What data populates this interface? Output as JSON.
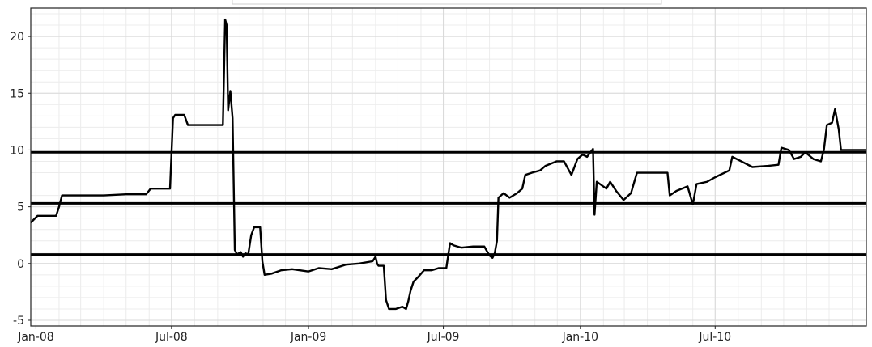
{
  "chart_data": {
    "type": "line",
    "x_axis": {
      "type": "date",
      "range": [
        "2007-12-25",
        "2011-01-20"
      ],
      "ticks": [
        {
          "date": "2008-01-01",
          "label": "Jan-08"
        },
        {
          "date": "2008-07-01",
          "label": "Jul-08"
        },
        {
          "date": "2009-01-01",
          "label": "Jan-09"
        },
        {
          "date": "2009-07-01",
          "label": "Jul-09"
        },
        {
          "date": "2010-01-01",
          "label": "Jan-10"
        },
        {
          "date": "2010-07-01",
          "label": "Jul-10"
        }
      ]
    },
    "y_axis": {
      "range": [
        -5.5,
        22.5
      ],
      "ticks": [
        -5,
        0,
        5,
        10,
        15,
        20
      ]
    },
    "grid": true,
    "reference_lines": [
      0.8,
      5.3,
      9.8
    ],
    "series": [
      {
        "points": [
          [
            "2007-12-25",
            3.6
          ],
          [
            "2008-01-03",
            4.2
          ],
          [
            "2008-01-10",
            4.2
          ],
          [
            "2008-01-20",
            4.2
          ],
          [
            "2008-01-28",
            4.2
          ],
          [
            "2008-02-01",
            5.0
          ],
          [
            "2008-02-05",
            6.0
          ],
          [
            "2008-03-01",
            6.0
          ],
          [
            "2008-04-01",
            6.0
          ],
          [
            "2008-05-01",
            6.1
          ],
          [
            "2008-05-28",
            6.1
          ],
          [
            "2008-06-03",
            6.6
          ],
          [
            "2008-06-29",
            6.6
          ],
          [
            "2008-07-03",
            12.8
          ],
          [
            "2008-07-06",
            13.1
          ],
          [
            "2008-07-18",
            13.1
          ],
          [
            "2008-07-23",
            12.2
          ],
          [
            "2008-08-10",
            12.2
          ],
          [
            "2008-08-31",
            12.2
          ],
          [
            "2008-09-08",
            12.2
          ],
          [
            "2008-09-11",
            21.5
          ],
          [
            "2008-09-13",
            21.0
          ],
          [
            "2008-09-15",
            13.5
          ],
          [
            "2008-09-18",
            15.2
          ],
          [
            "2008-09-21",
            12.8
          ],
          [
            "2008-09-24",
            1.2
          ],
          [
            "2008-09-27",
            0.8
          ],
          [
            "2008-10-02",
            1.0
          ],
          [
            "2008-10-05",
            0.6
          ],
          [
            "2008-10-08",
            0.9
          ],
          [
            "2008-10-12",
            0.8
          ],
          [
            "2008-10-16",
            2.5
          ],
          [
            "2008-10-20",
            3.2
          ],
          [
            "2008-10-28",
            3.2
          ],
          [
            "2008-10-31",
            0.2
          ],
          [
            "2008-11-03",
            -1.0
          ],
          [
            "2008-11-12",
            -0.9
          ],
          [
            "2008-11-25",
            -0.6
          ],
          [
            "2008-12-10",
            -0.5
          ],
          [
            "2009-01-01",
            -0.7
          ],
          [
            "2009-01-15",
            -0.4
          ],
          [
            "2009-02-01",
            -0.5
          ],
          [
            "2009-02-20",
            -0.1
          ],
          [
            "2009-03-10",
            0.0
          ],
          [
            "2009-03-28",
            0.2
          ],
          [
            "2009-04-01",
            0.6
          ],
          [
            "2009-04-03",
            0.0
          ],
          [
            "2009-04-05",
            -0.2
          ],
          [
            "2009-04-12",
            -0.2
          ],
          [
            "2009-04-15",
            -3.2
          ],
          [
            "2009-04-19",
            -4.0
          ],
          [
            "2009-04-28",
            -4.0
          ],
          [
            "2009-05-07",
            -3.8
          ],
          [
            "2009-05-12",
            -4.0
          ],
          [
            "2009-05-15",
            -3.3
          ],
          [
            "2009-05-18",
            -2.4
          ],
          [
            "2009-05-22",
            -1.6
          ],
          [
            "2009-05-28",
            -1.2
          ],
          [
            "2009-06-05",
            -0.6
          ],
          [
            "2009-06-15",
            -0.6
          ],
          [
            "2009-06-25",
            -0.4
          ],
          [
            "2009-07-05",
            -0.4
          ],
          [
            "2009-07-10",
            1.8
          ],
          [
            "2009-07-15",
            1.6
          ],
          [
            "2009-07-25",
            1.4
          ],
          [
            "2009-08-10",
            1.5
          ],
          [
            "2009-08-25",
            1.5
          ],
          [
            "2009-09-01",
            0.7
          ],
          [
            "2009-09-05",
            0.5
          ],
          [
            "2009-09-08",
            0.9
          ],
          [
            "2009-09-11",
            2.0
          ],
          [
            "2009-09-13",
            5.8
          ],
          [
            "2009-09-20",
            6.2
          ],
          [
            "2009-09-28",
            5.8
          ],
          [
            "2009-10-08",
            6.2
          ],
          [
            "2009-10-15",
            6.6
          ],
          [
            "2009-10-19",
            7.8
          ],
          [
            "2009-10-28",
            8.0
          ],
          [
            "2009-11-08",
            8.2
          ],
          [
            "2009-11-15",
            8.6
          ],
          [
            "2009-11-30",
            9.0
          ],
          [
            "2009-12-10",
            9.0
          ],
          [
            "2009-12-20",
            7.8
          ],
          [
            "2009-12-28",
            9.2
          ],
          [
            "2010-01-04",
            9.6
          ],
          [
            "2010-01-10",
            9.4
          ],
          [
            "2010-01-18",
            10.1
          ],
          [
            "2010-01-20",
            4.3
          ],
          [
            "2010-01-23",
            7.2
          ],
          [
            "2010-02-05",
            6.6
          ],
          [
            "2010-02-10",
            7.2
          ],
          [
            "2010-02-18",
            6.4
          ],
          [
            "2010-02-28",
            5.6
          ],
          [
            "2010-03-10",
            6.2
          ],
          [
            "2010-03-18",
            8.0
          ],
          [
            "2010-04-10",
            8.0
          ],
          [
            "2010-04-28",
            8.0
          ],
          [
            "2010-05-01",
            6.0
          ],
          [
            "2010-05-10",
            6.4
          ],
          [
            "2010-05-25",
            6.8
          ],
          [
            "2010-06-01",
            5.2
          ],
          [
            "2010-06-06",
            7.0
          ],
          [
            "2010-06-20",
            7.2
          ],
          [
            "2010-07-01",
            7.6
          ],
          [
            "2010-07-20",
            8.2
          ],
          [
            "2010-07-24",
            9.4
          ],
          [
            "2010-08-05",
            9.0
          ],
          [
            "2010-08-20",
            8.5
          ],
          [
            "2010-09-10",
            8.6
          ],
          [
            "2010-09-24",
            8.7
          ],
          [
            "2010-09-28",
            10.2
          ],
          [
            "2010-10-08",
            10.0
          ],
          [
            "2010-10-15",
            9.2
          ],
          [
            "2010-10-24",
            9.4
          ],
          [
            "2010-10-30",
            9.8
          ],
          [
            "2010-11-10",
            9.2
          ],
          [
            "2010-11-20",
            9.0
          ],
          [
            "2010-11-24",
            10.0
          ],
          [
            "2010-11-28",
            12.2
          ],
          [
            "2010-12-05",
            12.4
          ],
          [
            "2010-12-09",
            13.6
          ],
          [
            "2010-12-14",
            11.8
          ],
          [
            "2010-12-17",
            10.0
          ],
          [
            "2011-01-20",
            10.0
          ]
        ]
      }
    ]
  }
}
